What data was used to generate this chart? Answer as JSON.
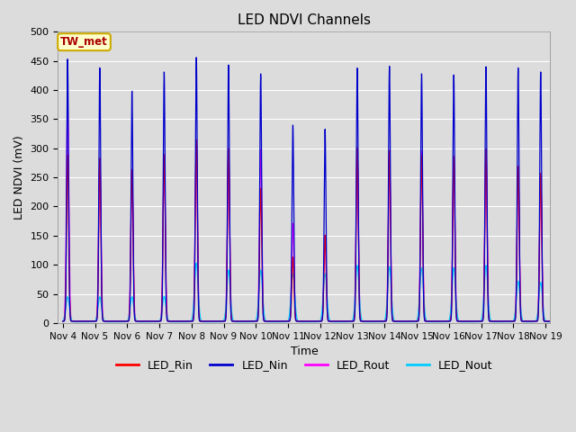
{
  "title": "LED NDVI Channels",
  "xlabel": "Time",
  "ylabel": "LED NDVI (mV)",
  "ylim": [
    0,
    500
  ],
  "xlim_days": [
    3.85,
    19.15
  ],
  "background_color": "#dcdcdc",
  "annotation_text": "TW_met",
  "annotation_bg": "#ffffcc",
  "annotation_border": "#ccaa00",
  "annotation_text_color": "#aa0000",
  "legend_entries": [
    "LED_Rin",
    "LED_Nin",
    "LED_Rout",
    "LED_Nout"
  ],
  "legend_colors": [
    "#ff0000",
    "#0000cc",
    "#ff00ff",
    "#00ccff"
  ],
  "x_tick_labels": [
    "Nov 4",
    "Nov 5",
    "Nov 6",
    "Nov 7",
    "Nov 8",
    "Nov 9",
    "Nov 10",
    "Nov 11",
    "Nov 12",
    "Nov 13",
    "Nov 14",
    "Nov 15",
    "Nov 16",
    "Nov 17",
    "Nov 18",
    "Nov 19"
  ],
  "x_tick_positions": [
    4,
    5,
    6,
    7,
    8,
    9,
    10,
    11,
    12,
    13,
    14,
    15,
    16,
    17,
    18,
    19
  ],
  "nin_peaks": [
    450,
    435,
    395,
    428,
    453,
    440,
    425,
    337,
    330,
    435,
    438,
    425,
    423,
    437,
    435,
    428
  ],
  "rin_peaks": [
    285,
    280,
    260,
    286,
    312,
    297,
    228,
    110,
    148,
    298,
    293,
    285,
    283,
    296,
    266,
    254
  ],
  "rout_peaks": [
    378,
    278,
    258,
    284,
    310,
    295,
    295,
    168,
    146,
    296,
    291,
    292,
    280,
    293,
    264,
    252
  ],
  "nout_peaks": [
    43,
    43,
    43,
    44,
    101,
    89,
    89,
    83,
    83,
    97,
    95,
    93,
    93,
    97,
    70,
    68
  ],
  "peak_positions": [
    4.15,
    5.15,
    6.15,
    7.15,
    8.15,
    9.15,
    10.15,
    11.15,
    12.15,
    13.15,
    14.15,
    15.15,
    16.15,
    17.15,
    18.15,
    18.85
  ],
  "grid_color": "#ffffff",
  "tick_fontsize": 8
}
